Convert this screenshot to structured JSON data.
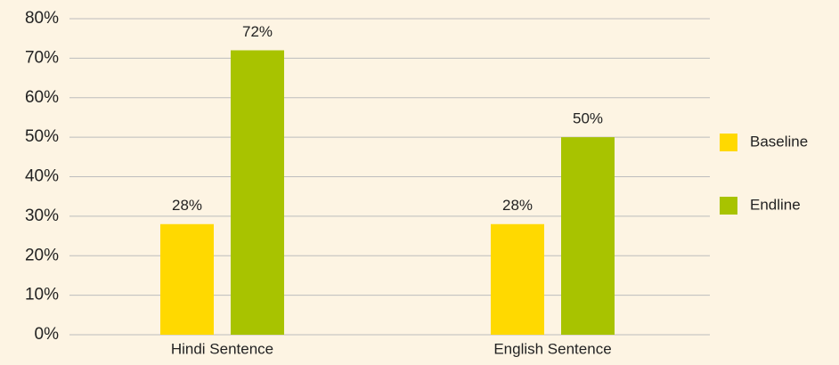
{
  "chart_data": {
    "type": "bar",
    "categories": [
      "Hindi Sentence",
      "English Sentence"
    ],
    "series": [
      {
        "name": "Baseline",
        "color": "#ffd900",
        "values": [
          28,
          28
        ],
        "value_labels": [
          "28%",
          "28%"
        ]
      },
      {
        "name": "Endline",
        "color": "#a8c300",
        "values": [
          72,
          50
        ],
        "value_labels": [
          "72%",
          "50%"
        ]
      }
    ],
    "ylim": [
      0,
      80
    ],
    "yticks": [
      {
        "value": 0,
        "label": "0%"
      },
      {
        "value": 10,
        "label": "10%"
      },
      {
        "value": 20,
        "label": "20%"
      },
      {
        "value": 30,
        "label": "30%"
      },
      {
        "value": 40,
        "label": "40%"
      },
      {
        "value": 50,
        "label": "50%"
      },
      {
        "value": 60,
        "label": "60%"
      },
      {
        "value": 70,
        "label": "70%"
      },
      {
        "value": 80,
        "label": "80%"
      }
    ],
    "grid": true,
    "legend": "right"
  }
}
